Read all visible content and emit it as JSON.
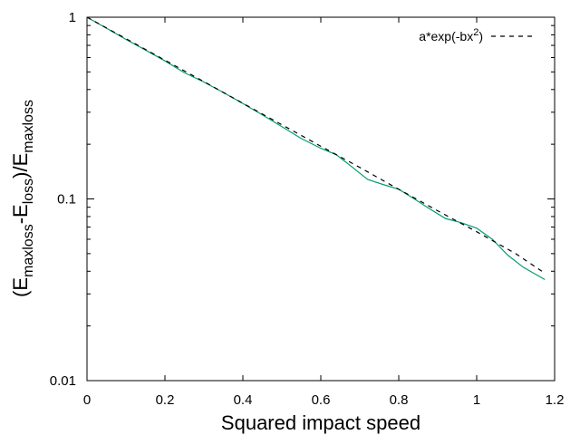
{
  "chart_data": {
    "type": "line",
    "xlabel": "Squared impact speed",
    "ylabel": {
      "parts": [
        {
          "text": "(E",
          "sub": false
        },
        {
          "text": "maxloss",
          "sub": true
        },
        {
          "text": "-E",
          "sub": false
        },
        {
          "text": "loss",
          "sub": true
        },
        {
          "text": ")/E",
          "sub": false
        },
        {
          "text": "maxloss",
          "sub": true
        }
      ]
    },
    "xlim": [
      0,
      1.2
    ],
    "ylim": [
      0.01,
      1
    ],
    "yscale": "log",
    "grid": false,
    "legend_position": "top-right",
    "x_ticks": [
      {
        "value": 0,
        "label": "0"
      },
      {
        "value": 0.2,
        "label": "0.2"
      },
      {
        "value": 0.4,
        "label": "0.4"
      },
      {
        "value": 0.6,
        "label": "0.6"
      },
      {
        "value": 0.8,
        "label": "0.8"
      },
      {
        "value": 1.0,
        "label": "1"
      },
      {
        "value": 1.2,
        "label": "1.2"
      }
    ],
    "y_ticks": [
      {
        "value": 0.01,
        "label": "0.01"
      },
      {
        "value": 0.1,
        "label": "0.1"
      },
      {
        "value": 1,
        "label": "1"
      }
    ],
    "series": [
      {
        "color": "#009e73",
        "style": "solid",
        "x": [
          0,
          0.05,
          0.1,
          0.15,
          0.2,
          0.25,
          0.3,
          0.35,
          0.4,
          0.45,
          0.5,
          0.55,
          0.6,
          0.64,
          0.68,
          0.72,
          0.76,
          0.8,
          0.84,
          0.88,
          0.92,
          0.96,
          1.0,
          1.04,
          1.08,
          1.12,
          1.175
        ],
        "y": [
          1.0,
          0.87,
          0.755,
          0.66,
          0.575,
          0.495,
          0.44,
          0.385,
          0.335,
          0.29,
          0.25,
          0.215,
          0.19,
          0.175,
          0.15,
          0.128,
          0.12,
          0.113,
          0.1,
          0.088,
          0.078,
          0.074,
          0.069,
          0.06,
          0.049,
          0.042,
          0.036
        ]
      },
      {
        "name": "a*exp(-bx",
        "name_sup": "2",
        "name_suffix": ")",
        "color": "#000000",
        "style": "dashed",
        "x": [
          0,
          0.1,
          0.2,
          0.3,
          0.4,
          0.5,
          0.6,
          0.7,
          0.8,
          0.9,
          1.0,
          1.1,
          1.175
        ],
        "y": [
          1.0,
          0.762,
          0.58,
          0.442,
          0.336,
          0.256,
          0.195,
          0.149,
          0.113,
          0.086,
          0.066,
          0.05,
          0.039
        ]
      }
    ]
  }
}
